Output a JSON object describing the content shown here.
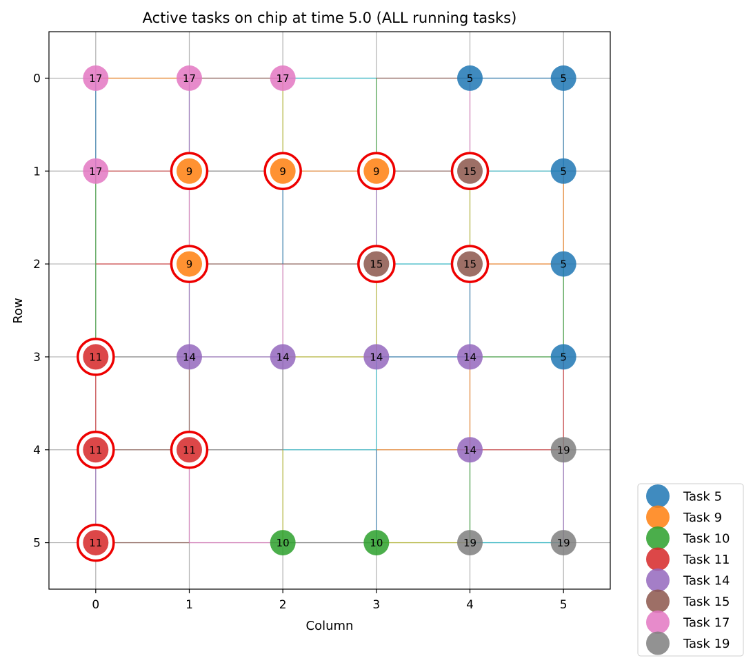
{
  "chart_data": {
    "type": "scatter",
    "title": "Active tasks on chip at time 5.0 (ALL running tasks)",
    "xlabel": "Column",
    "ylabel": "Row",
    "xlim": [
      -0.5,
      5.5
    ],
    "ylim": [
      5.5,
      -0.5
    ],
    "y_inverted": true,
    "x_ticks": [
      0,
      1,
      2,
      3,
      4,
      5
    ],
    "y_ticks": [
      0,
      1,
      2,
      3,
      4,
      5
    ],
    "grid": true,
    "legend_position": "outside-bottom-right",
    "highlight_color": "#ee0000",
    "tasks": [
      {
        "name": "Task 5",
        "id": "5",
        "color": "#1f77b4"
      },
      {
        "name": "Task 9",
        "id": "9",
        "color": "#ff7f0e"
      },
      {
        "name": "Task 10",
        "id": "10",
        "color": "#2ca02c"
      },
      {
        "name": "Task 11",
        "id": "11",
        "color": "#d62728"
      },
      {
        "name": "Task 14",
        "id": "14",
        "color": "#9467bd"
      },
      {
        "name": "Task 15",
        "id": "15",
        "color": "#8c564b"
      },
      {
        "name": "Task 17",
        "id": "17",
        "color": "#e377c2"
      },
      {
        "name": "Task 19",
        "id": "19",
        "color": "#7f7f7f"
      }
    ],
    "nodes": [
      {
        "col": 0,
        "row": 0,
        "task": "17",
        "highlight": false
      },
      {
        "col": 1,
        "row": 0,
        "task": "17",
        "highlight": false
      },
      {
        "col": 2,
        "row": 0,
        "task": "17",
        "highlight": false
      },
      {
        "col": 4,
        "row": 0,
        "task": "5",
        "highlight": false
      },
      {
        "col": 5,
        "row": 0,
        "task": "5",
        "highlight": false
      },
      {
        "col": 0,
        "row": 1,
        "task": "17",
        "highlight": false
      },
      {
        "col": 1,
        "row": 1,
        "task": "9",
        "highlight": true
      },
      {
        "col": 2,
        "row": 1,
        "task": "9",
        "highlight": true
      },
      {
        "col": 3,
        "row": 1,
        "task": "9",
        "highlight": true
      },
      {
        "col": 4,
        "row": 1,
        "task": "15",
        "highlight": true
      },
      {
        "col": 5,
        "row": 1,
        "task": "5",
        "highlight": false
      },
      {
        "col": 1,
        "row": 2,
        "task": "9",
        "highlight": true
      },
      {
        "col": 3,
        "row": 2,
        "task": "15",
        "highlight": true
      },
      {
        "col": 4,
        "row": 2,
        "task": "15",
        "highlight": true
      },
      {
        "col": 5,
        "row": 2,
        "task": "5",
        "highlight": false
      },
      {
        "col": 0,
        "row": 3,
        "task": "11",
        "highlight": true
      },
      {
        "col": 1,
        "row": 3,
        "task": "14",
        "highlight": false
      },
      {
        "col": 2,
        "row": 3,
        "task": "14",
        "highlight": false
      },
      {
        "col": 3,
        "row": 3,
        "task": "14",
        "highlight": false
      },
      {
        "col": 4,
        "row": 3,
        "task": "14",
        "highlight": false
      },
      {
        "col": 5,
        "row": 3,
        "task": "5",
        "highlight": false
      },
      {
        "col": 0,
        "row": 4,
        "task": "11",
        "highlight": true
      },
      {
        "col": 1,
        "row": 4,
        "task": "11",
        "highlight": true
      },
      {
        "col": 4,
        "row": 4,
        "task": "14",
        "highlight": false
      },
      {
        "col": 5,
        "row": 4,
        "task": "19",
        "highlight": false
      },
      {
        "col": 0,
        "row": 5,
        "task": "11",
        "highlight": true
      },
      {
        "col": 2,
        "row": 5,
        "task": "10",
        "highlight": false
      },
      {
        "col": 3,
        "row": 5,
        "task": "10",
        "highlight": false
      },
      {
        "col": 4,
        "row": 5,
        "task": "19",
        "highlight": false
      },
      {
        "col": 5,
        "row": 5,
        "task": "19",
        "highlight": false
      }
    ],
    "links": [
      {
        "from": [
          0,
          0
        ],
        "to": [
          1,
          0
        ],
        "color": "#ff7f0e"
      },
      {
        "from": [
          1,
          0
        ],
        "to": [
          2,
          0
        ],
        "color": "#8c564b"
      },
      {
        "from": [
          2,
          0
        ],
        "to": [
          3,
          0
        ],
        "color": "#17becf"
      },
      {
        "from": [
          3,
          0
        ],
        "to": [
          4,
          0
        ],
        "color": "#8c564b"
      },
      {
        "from": [
          4,
          0
        ],
        "to": [
          5,
          0
        ],
        "color": "#1f77b4"
      },
      {
        "from": [
          0,
          1
        ],
        "to": [
          1,
          1
        ],
        "color": "#d62728"
      },
      {
        "from": [
          1,
          1
        ],
        "to": [
          2,
          1
        ],
        "color": "#7f7f7f"
      },
      {
        "from": [
          2,
          1
        ],
        "to": [
          3,
          1
        ],
        "color": "#ff7f0e"
      },
      {
        "from": [
          3,
          1
        ],
        "to": [
          4,
          1
        ],
        "color": "#8c564b"
      },
      {
        "from": [
          4,
          1
        ],
        "to": [
          5,
          1
        ],
        "color": "#17becf"
      },
      {
        "from": [
          0,
          2
        ],
        "to": [
          1,
          2
        ],
        "color": "#d62728"
      },
      {
        "from": [
          1,
          2
        ],
        "to": [
          2,
          2
        ],
        "color": "#8c564b"
      },
      {
        "from": [
          2,
          2
        ],
        "to": [
          3,
          2
        ],
        "color": "#8c564b"
      },
      {
        "from": [
          3,
          2
        ],
        "to": [
          4,
          2
        ],
        "color": "#17becf"
      },
      {
        "from": [
          4,
          2
        ],
        "to": [
          5,
          2
        ],
        "color": "#ff7f0e"
      },
      {
        "from": [
          0,
          3
        ],
        "to": [
          1,
          3
        ],
        "color": "#7f7f7f"
      },
      {
        "from": [
          1,
          3
        ],
        "to": [
          2,
          3
        ],
        "color": "#9467bd"
      },
      {
        "from": [
          2,
          3
        ],
        "to": [
          3,
          3
        ],
        "color": "#bcbd22"
      },
      {
        "from": [
          3,
          3
        ],
        "to": [
          4,
          3
        ],
        "color": "#1f77b4"
      },
      {
        "from": [
          4,
          3
        ],
        "to": [
          5,
          3
        ],
        "color": "#2ca02c"
      },
      {
        "from": [
          0,
          4
        ],
        "to": [
          1,
          4
        ],
        "color": "#8c564b"
      },
      {
        "from": [
          1,
          4
        ],
        "to": [
          2,
          4
        ],
        "color": "#7f7f7f"
      },
      {
        "from": [
          2,
          4
        ],
        "to": [
          3,
          4
        ],
        "color": "#17becf"
      },
      {
        "from": [
          3,
          4
        ],
        "to": [
          4,
          4
        ],
        "color": "#ff7f0e"
      },
      {
        "from": [
          4,
          4
        ],
        "to": [
          5,
          4
        ],
        "color": "#d62728"
      },
      {
        "from": [
          0,
          5
        ],
        "to": [
          1,
          5
        ],
        "color": "#8c564b"
      },
      {
        "from": [
          1,
          5
        ],
        "to": [
          2,
          5
        ],
        "color": "#e377c2"
      },
      {
        "from": [
          2,
          5
        ],
        "to": [
          3,
          5
        ],
        "color": "#7f7f7f"
      },
      {
        "from": [
          3,
          5
        ],
        "to": [
          4,
          5
        ],
        "color": "#bcbd22"
      },
      {
        "from": [
          4,
          5
        ],
        "to": [
          5,
          5
        ],
        "color": "#17becf"
      },
      {
        "from": [
          0,
          0
        ],
        "to": [
          0,
          1
        ],
        "color": "#1f77b4"
      },
      {
        "from": [
          0,
          1
        ],
        "to": [
          0,
          2
        ],
        "color": "#2ca02c"
      },
      {
        "from": [
          0,
          2
        ],
        "to": [
          0,
          3
        ],
        "color": "#2ca02c"
      },
      {
        "from": [
          0,
          3
        ],
        "to": [
          0,
          4
        ],
        "color": "#d62728"
      },
      {
        "from": [
          0,
          4
        ],
        "to": [
          0,
          5
        ],
        "color": "#9467bd"
      },
      {
        "from": [
          1,
          0
        ],
        "to": [
          1,
          1
        ],
        "color": "#9467bd"
      },
      {
        "from": [
          1,
          1
        ],
        "to": [
          1,
          2
        ],
        "color": "#e377c2"
      },
      {
        "from": [
          1,
          2
        ],
        "to": [
          1,
          3
        ],
        "color": "#9467bd"
      },
      {
        "from": [
          1,
          3
        ],
        "to": [
          1,
          4
        ],
        "color": "#8c564b"
      },
      {
        "from": [
          1,
          4
        ],
        "to": [
          1,
          5
        ],
        "color": "#e377c2"
      },
      {
        "from": [
          2,
          0
        ],
        "to": [
          2,
          1
        ],
        "color": "#bcbd22"
      },
      {
        "from": [
          2,
          1
        ],
        "to": [
          2,
          2
        ],
        "color": "#1f77b4"
      },
      {
        "from": [
          2,
          2
        ],
        "to": [
          2,
          3
        ],
        "color": "#e377c2"
      },
      {
        "from": [
          2,
          3
        ],
        "to": [
          2,
          4
        ],
        "color": "#7f7f7f"
      },
      {
        "from": [
          2,
          4
        ],
        "to": [
          2,
          5
        ],
        "color": "#bcbd22"
      },
      {
        "from": [
          3,
          0
        ],
        "to": [
          3,
          1
        ],
        "color": "#2ca02c"
      },
      {
        "from": [
          3,
          1
        ],
        "to": [
          3,
          2
        ],
        "color": "#9467bd"
      },
      {
        "from": [
          3,
          2
        ],
        "to": [
          3,
          3
        ],
        "color": "#bcbd22"
      },
      {
        "from": [
          3,
          3
        ],
        "to": [
          3,
          4
        ],
        "color": "#17becf"
      },
      {
        "from": [
          3,
          4
        ],
        "to": [
          3,
          5
        ],
        "color": "#1f77b4"
      },
      {
        "from": [
          4,
          0
        ],
        "to": [
          4,
          1
        ],
        "color": "#e377c2"
      },
      {
        "from": [
          4,
          1
        ],
        "to": [
          4,
          2
        ],
        "color": "#bcbd22"
      },
      {
        "from": [
          4,
          2
        ],
        "to": [
          4,
          3
        ],
        "color": "#1f77b4"
      },
      {
        "from": [
          4,
          3
        ],
        "to": [
          4,
          4
        ],
        "color": "#ff7f0e"
      },
      {
        "from": [
          4,
          4
        ],
        "to": [
          4,
          5
        ],
        "color": "#2ca02c"
      },
      {
        "from": [
          5,
          0
        ],
        "to": [
          5,
          1
        ],
        "color": "#1f77b4"
      },
      {
        "from": [
          5,
          1
        ],
        "to": [
          5,
          2
        ],
        "color": "#ff7f0e"
      },
      {
        "from": [
          5,
          2
        ],
        "to": [
          5,
          3
        ],
        "color": "#2ca02c"
      },
      {
        "from": [
          5,
          3
        ],
        "to": [
          5,
          4
        ],
        "color": "#d62728"
      },
      {
        "from": [
          5,
          4
        ],
        "to": [
          5,
          5
        ],
        "color": "#9467bd"
      }
    ]
  }
}
